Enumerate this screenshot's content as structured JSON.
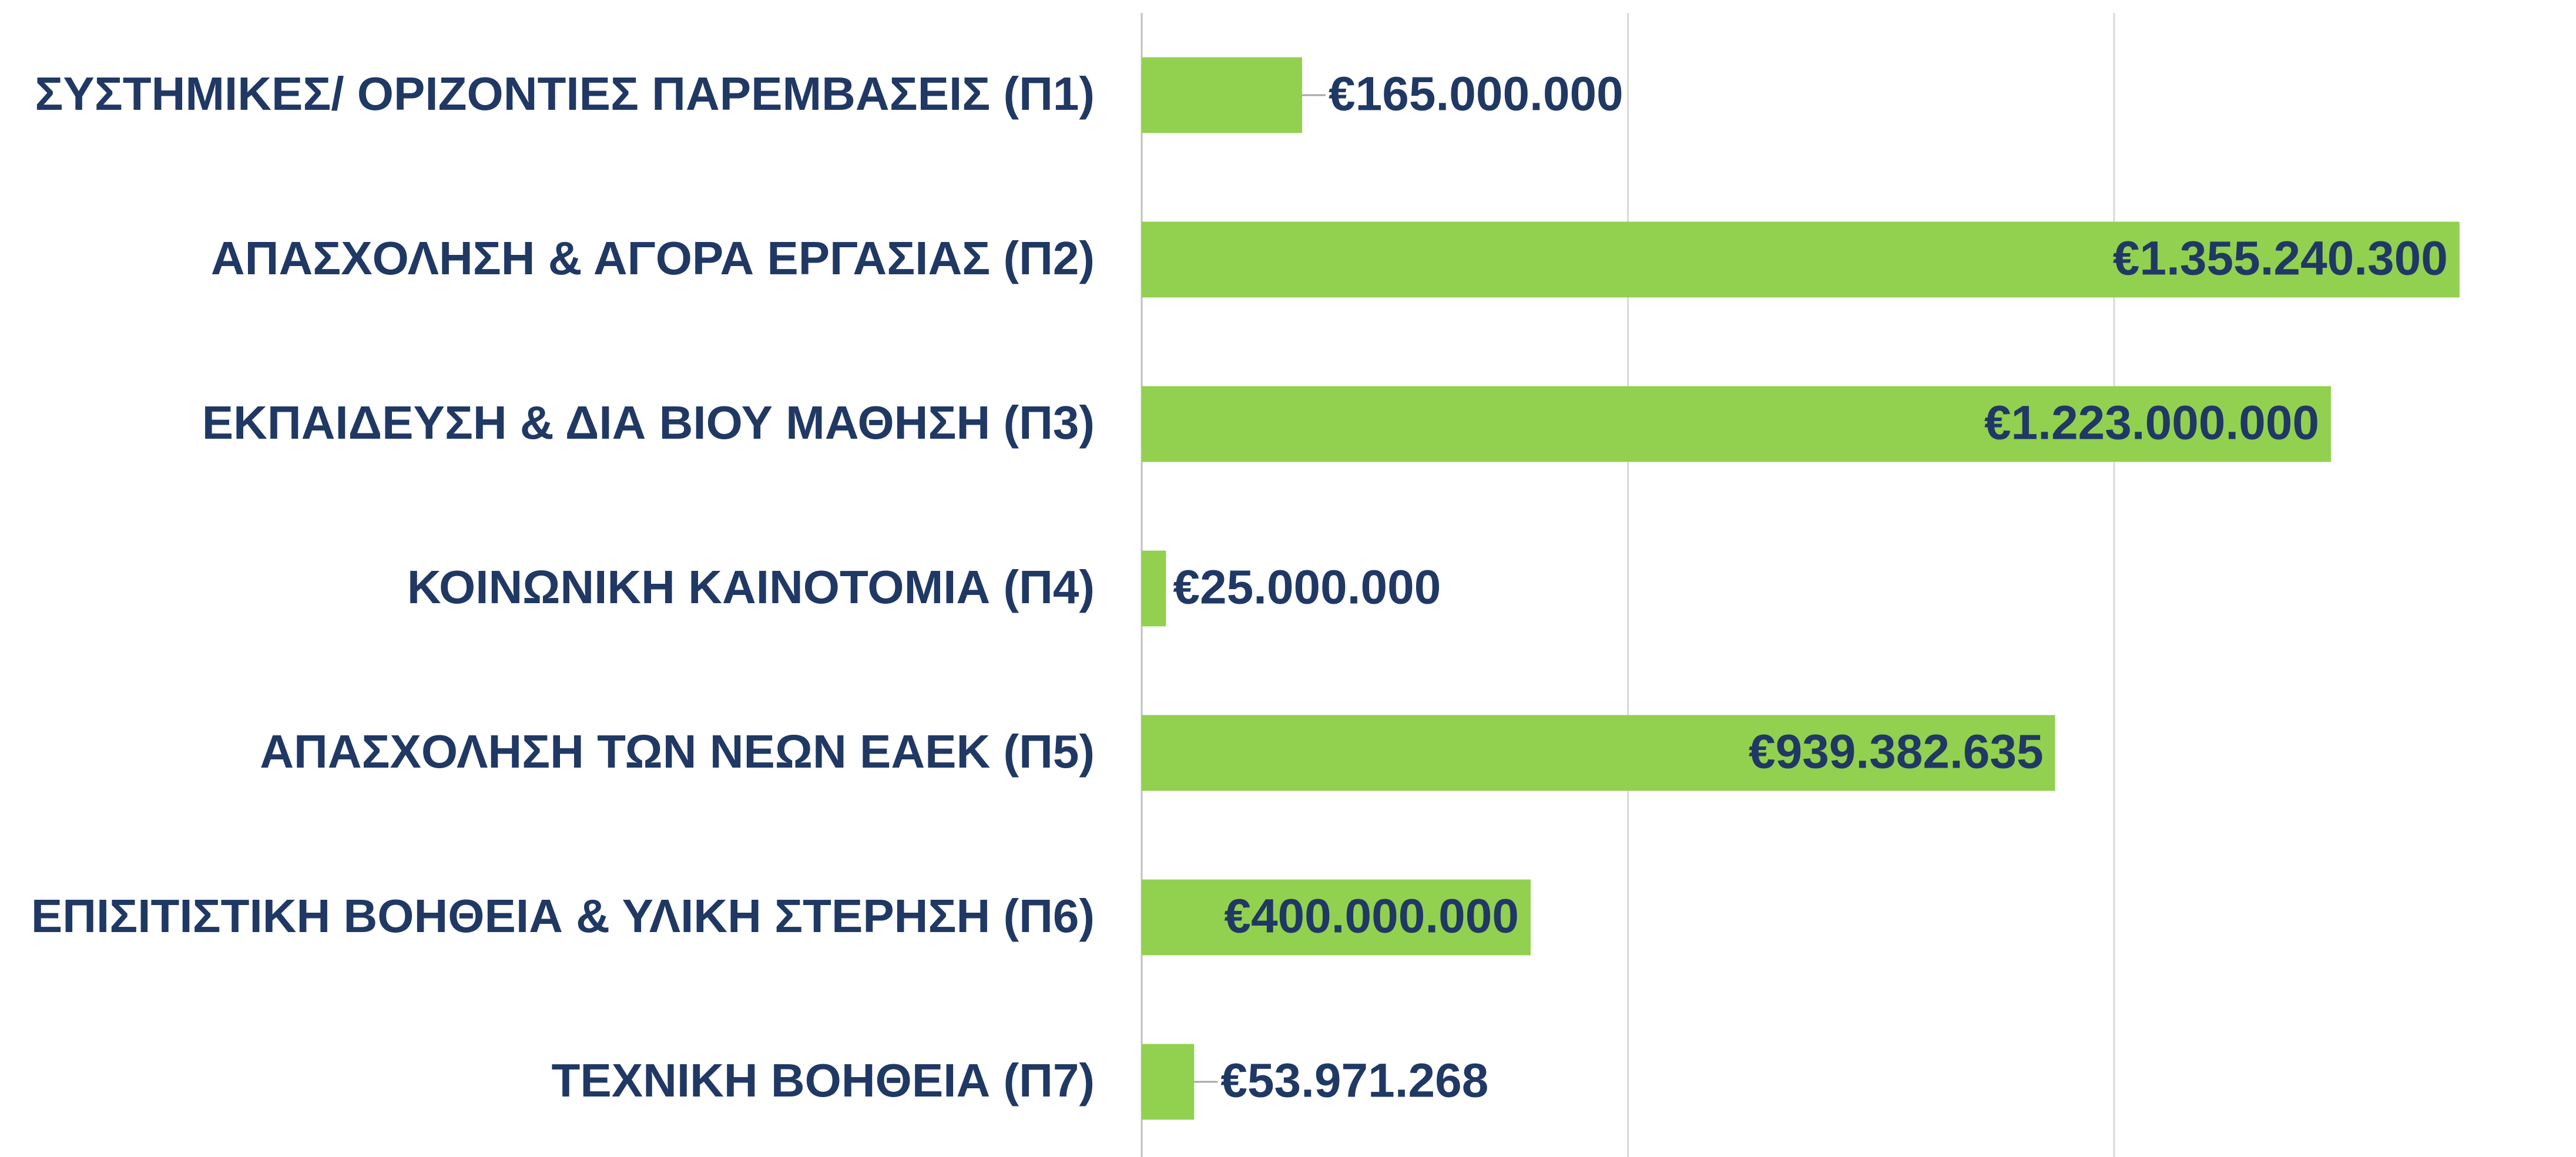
{
  "chart_data": {
    "type": "bar",
    "orientation": "horizontal",
    "categories": [
      "ΣΥΣΤΗΜΙΚΕΣ/ ΟΡΙΖΟΝΤΙΕΣ ΠΑΡΕΜΒΑΣΕΙΣ (Π1)",
      "ΑΠΑΣΧΟΛΗΣΗ & ΑΓΟΡΑ ΕΡΓΑΣΙΑΣ (Π2)",
      "ΕΚΠΑΙΔΕΥΣΗ & ΔΙΑ ΒΙΟΥ ΜΑΘΗΣΗ (Π3)",
      "ΚΟΙΝΩΝΙΚΗ ΚΑΙΝΟΤΟΜΙΑ (Π4)",
      "ΑΠΑΣΧΟΛΗΣΗ ΤΩΝ ΝΕΩΝ ΕΑΕΚ (Π5)",
      "ΕΠΙΣΙΤΙΣΤΙΚΗ ΒΟΗΘΕΙΑ & ΥΛΙΚΗ ΣΤΕΡΗΣΗ (Π6)",
      "ΤΕΧΝΙΚΗ ΒΟΗΘΕΙΑ (Π7)"
    ],
    "values": [
      165000000,
      1355240300,
      1223000000,
      25000000,
      939382635,
      400000000,
      53971268
    ],
    "value_labels": [
      "€165.000.000",
      "€1.355.240.300",
      "€1.223.000.000",
      "€25.000.000",
      "€939.382.635",
      "€400.000.000",
      "€53.971.268"
    ],
    "color": "#92d050",
    "xlim": [
      0,
      1475000000
    ],
    "xticks": [
      0,
      500000000,
      1000000000
    ],
    "grid": true
  }
}
